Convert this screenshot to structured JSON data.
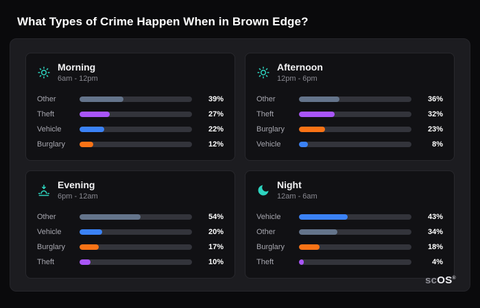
{
  "page": {
    "title": "What Types of Crime Happen When in Brown Edge?"
  },
  "brand": {
    "sc": "sc",
    "os": "OS",
    "reg": "®"
  },
  "colors": {
    "Other": "#64748b",
    "Theft": "#a855f7",
    "Vehicle": "#3b82f6",
    "Burglary": "#f97316",
    "icon_accent": "#2dd4bf"
  },
  "chart_data": [
    {
      "type": "bar",
      "title": "Morning",
      "subtitle": "6am - 12pm",
      "icon": "sun-icon",
      "categories": [
        "Other",
        "Theft",
        "Vehicle",
        "Burglary"
      ],
      "values": [
        39,
        27,
        22,
        12
      ],
      "unit": "%",
      "xlim": [
        0,
        100
      ],
      "orientation": "horizontal"
    },
    {
      "type": "bar",
      "title": "Afternoon",
      "subtitle": "12pm - 6pm",
      "icon": "sun-icon",
      "categories": [
        "Other",
        "Theft",
        "Burglary",
        "Vehicle"
      ],
      "values": [
        36,
        32,
        23,
        8
      ],
      "unit": "%",
      "xlim": [
        0,
        100
      ],
      "orientation": "horizontal"
    },
    {
      "type": "bar",
      "title": "Evening",
      "subtitle": "6pm - 12am",
      "icon": "sunset-icon",
      "categories": [
        "Other",
        "Vehicle",
        "Burglary",
        "Theft"
      ],
      "values": [
        54,
        20,
        17,
        10
      ],
      "unit": "%",
      "xlim": [
        0,
        100
      ],
      "orientation": "horizontal"
    },
    {
      "type": "bar",
      "title": "Night",
      "subtitle": "12am - 6am",
      "icon": "moon-icon",
      "categories": [
        "Vehicle",
        "Other",
        "Burglary",
        "Theft"
      ],
      "values": [
        43,
        34,
        18,
        4
      ],
      "unit": "%",
      "xlim": [
        0,
        100
      ],
      "orientation": "horizontal"
    }
  ]
}
